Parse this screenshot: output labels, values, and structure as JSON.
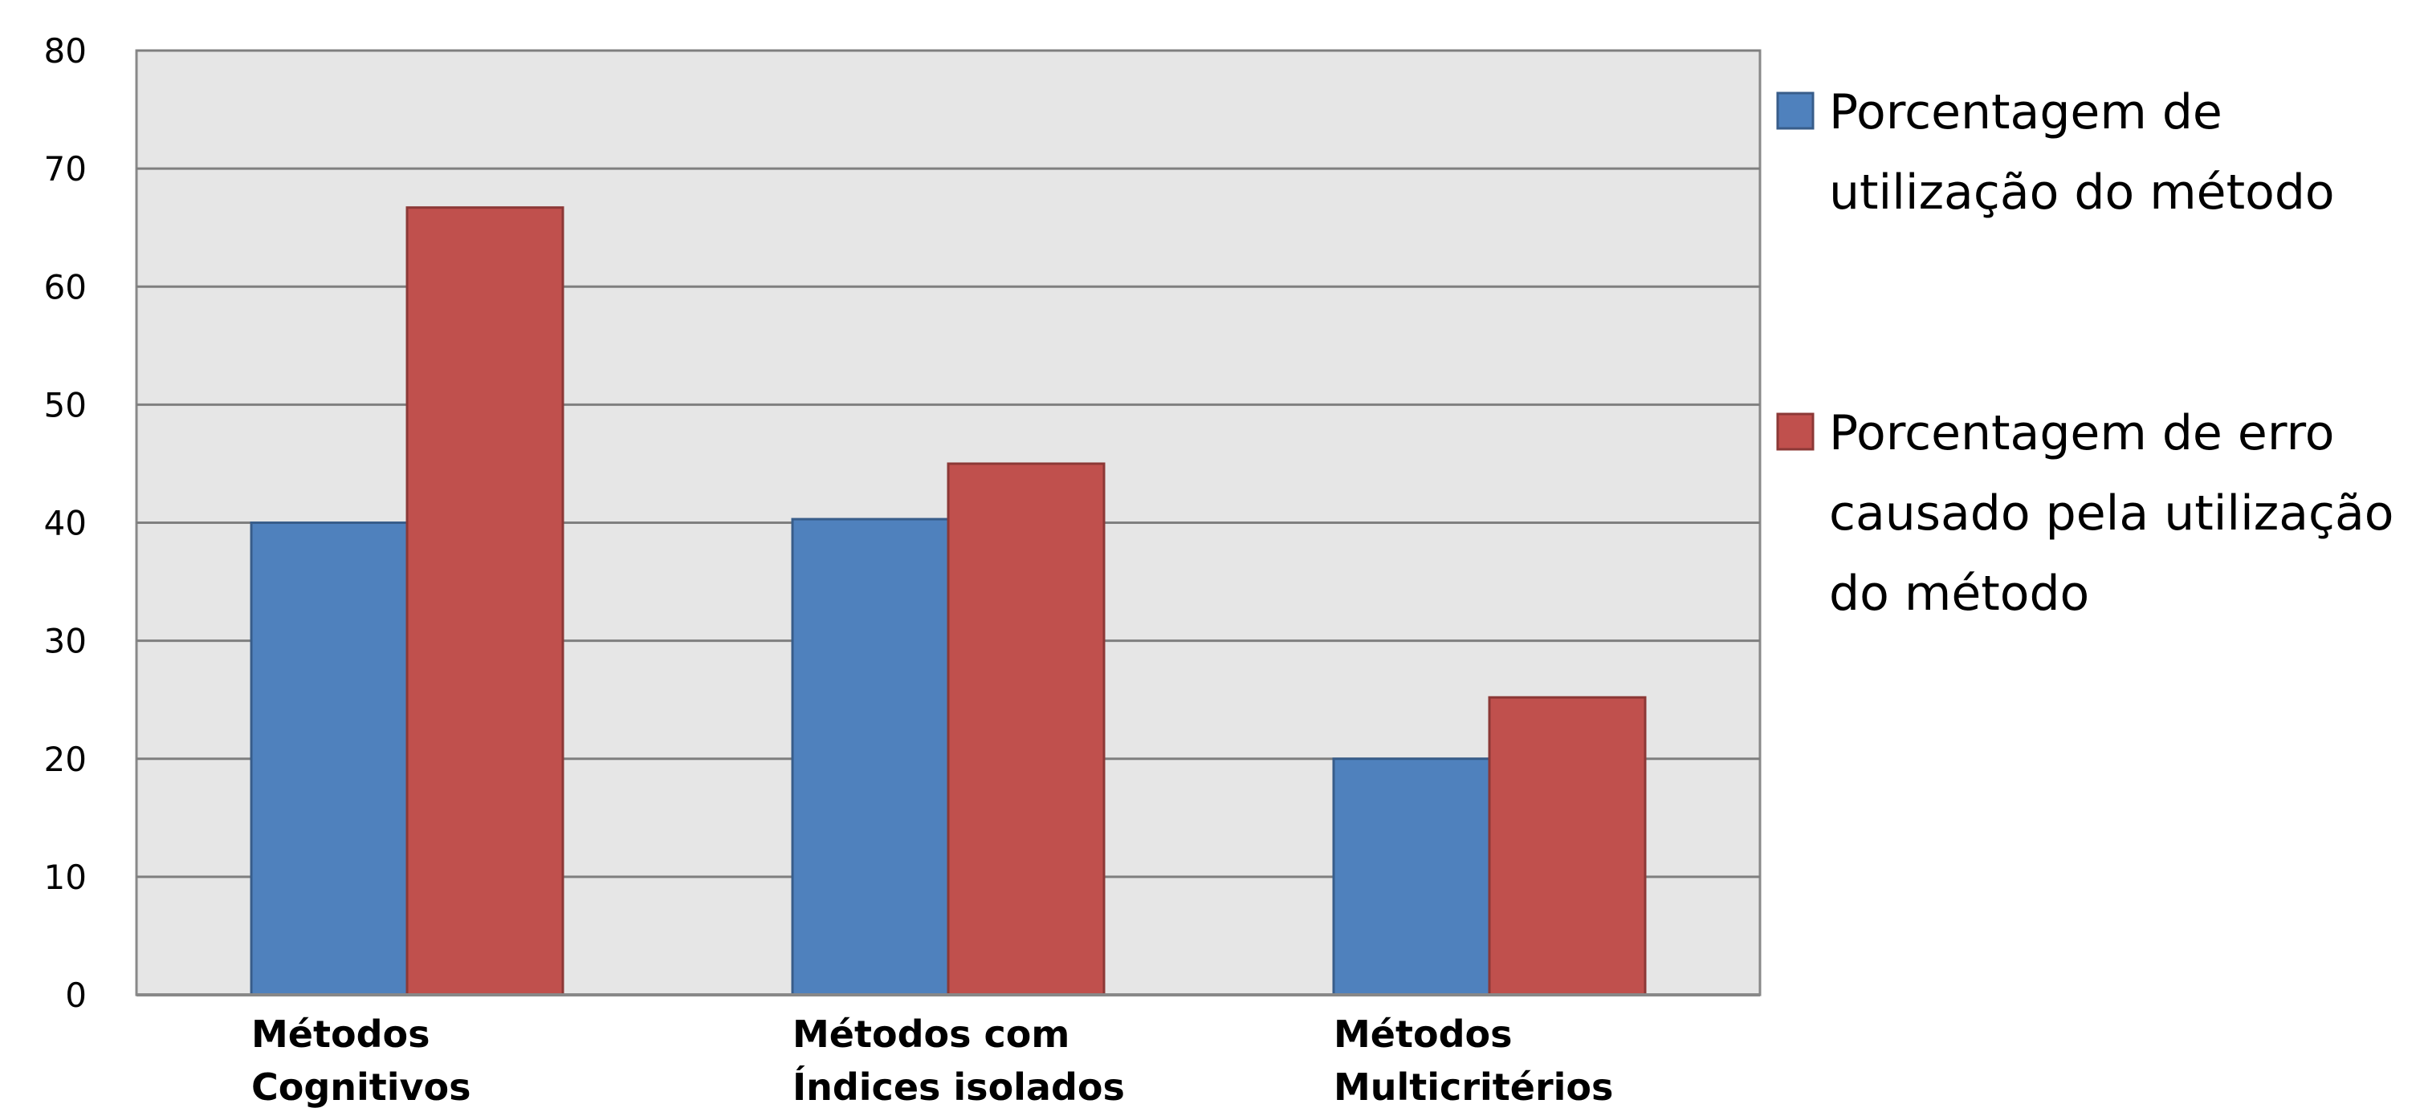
{
  "chart_data": {
    "type": "bar",
    "categories": [
      [
        "Métodos",
        "Cognitivos"
      ],
      [
        "Métodos com",
        "Índices isolados"
      ],
      [
        "Métodos",
        "Multicritérios"
      ]
    ],
    "series": [
      {
        "name": [
          "Porcentagem de",
          "utilização do método"
        ],
        "color": "#4F81BD",
        "stroke": "#385D8A",
        "values": [
          40,
          40.3,
          20
        ]
      },
      {
        "name": [
          "Porcentagem de erro",
          "causado pela utilização",
          "do método"
        ],
        "color": "#C0504D",
        "stroke": "#8C3836",
        "values": [
          66.7,
          45,
          25.2
        ]
      }
    ],
    "ylim": [
      0,
      80
    ],
    "yticks": [
      0,
      10,
      20,
      30,
      40,
      50,
      60,
      70,
      80
    ],
    "grid": true,
    "plot_background": "#E6E6E6",
    "legend_position": "right"
  }
}
